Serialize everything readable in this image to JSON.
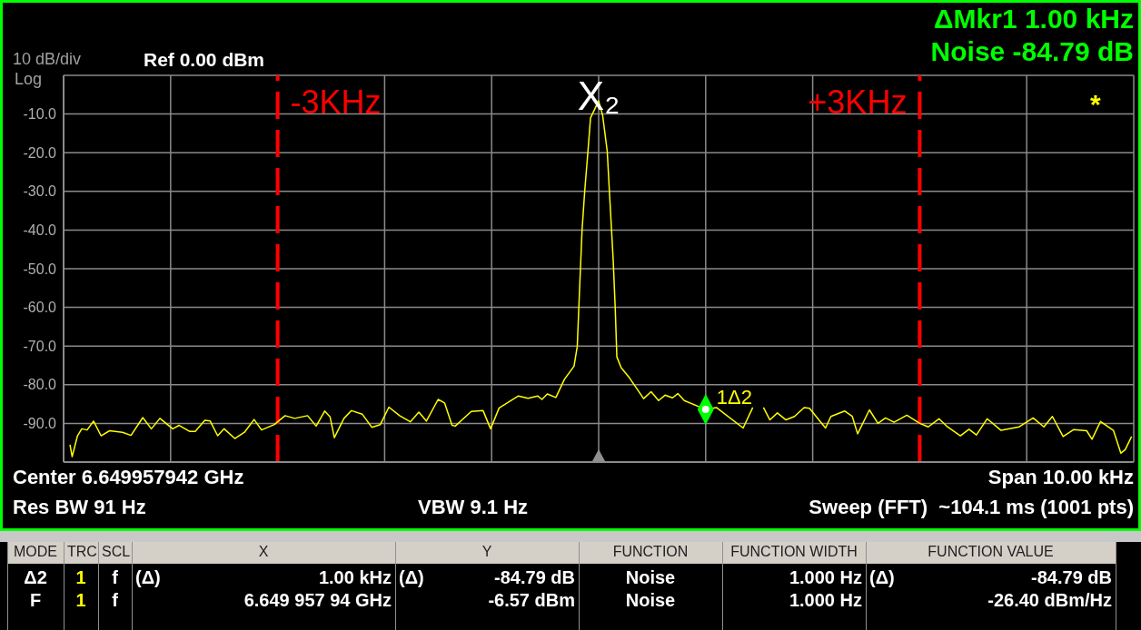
{
  "chart_data": {
    "type": "line",
    "ylim": [
      -100,
      0
    ],
    "yticks": [
      {
        "value": -10,
        "label": "-10.0"
      },
      {
        "value": -20,
        "label": "-20.0"
      },
      {
        "value": -30,
        "label": "-30.0"
      },
      {
        "value": -40,
        "label": "-40.0"
      },
      {
        "value": -50,
        "label": "-50.0"
      },
      {
        "value": -60,
        "label": "-60.0"
      },
      {
        "value": -70,
        "label": "-70.0"
      },
      {
        "value": -80,
        "label": "-80.0"
      },
      {
        "value": -90,
        "label": "-90.0"
      }
    ],
    "xlim": [
      -5,
      5
    ],
    "xticks": [
      {
        "value": -5,
        "label": null
      },
      {
        "value": -4,
        "label": null
      },
      {
        "value": -2,
        "label": null
      },
      {
        "value": -1,
        "label": null
      },
      {
        "value": 0,
        "label": null
      },
      {
        "value": 1,
        "label": null
      },
      {
        "value": 2,
        "label": null
      },
      {
        "value": 4,
        "label": null
      },
      {
        "value": 5,
        "label": null
      }
    ],
    "tick_labels": "y",
    "grid": true,
    "line_style": "solid",
    "series": [
      {
        "type": "line",
        "color": "#ffff00",
        "marker": "none",
        "x": [
          -4.94,
          -4.92,
          -4.87,
          -4.83,
          -4.78,
          -4.72,
          -4.65,
          -4.57,
          -4.45,
          -4.37,
          -4.26,
          -4.18,
          -4.1,
          -3.98,
          -3.92,
          -3.82,
          -3.77,
          -3.68,
          -3.63,
          -3.56,
          -3.5,
          -3.4,
          -3.31,
          -3.22,
          -3.15,
          -3.03,
          -2.93,
          -2.84,
          -2.72,
          -2.64,
          -2.56,
          -2.51,
          -2.47,
          -2.38,
          -2.31,
          -2.21,
          -2.12,
          -2.04,
          -1.96,
          -1.86,
          -1.76,
          -1.68,
          -1.61,
          -1.5,
          -1.44,
          -1.37,
          -1.34,
          -1.19,
          -1.08,
          -1.01,
          -0.93,
          -0.75,
          -0.66,
          -0.57,
          -0.53,
          -0.48,
          -0.4,
          -0.32,
          -0.23,
          -0.2,
          -0.18,
          -0.155,
          -0.13,
          -0.1,
          -0.076,
          0,
          0.037,
          0.08,
          0.1,
          0.136,
          0.155,
          0.17,
          0.21,
          0.29,
          0.42,
          0.49,
          0.56,
          0.62,
          0.69,
          0.74,
          0.8,
          0.94,
          1,
          1.1,
          1.35,
          1.44,
          1.49,
          1.54,
          1.6,
          1.67,
          1.75,
          1.83,
          1.92,
          1.97,
          2.12,
          2.17,
          2.3,
          2.37,
          2.42,
          2.53,
          2.61,
          2.68,
          2.76,
          2.88,
          3,
          3.08,
          3.18,
          3.26,
          3.38,
          3.46,
          3.53,
          3.63,
          3.76,
          3.93,
          4.06,
          4.16,
          4.24,
          4.34,
          4.44,
          4.56,
          4.61,
          4.69,
          4.81,
          4.88,
          4.92,
          4.98
        ],
        "values": [
          -95.5,
          -98.6,
          -93.2,
          -91.4,
          -91.7,
          -89.4,
          -93.2,
          -91.9,
          -92.3,
          -93.1,
          -88.5,
          -91.4,
          -88.7,
          -91.4,
          -90.5,
          -92.1,
          -92.1,
          -89.2,
          -89.4,
          -93.2,
          -91.4,
          -93.9,
          -92.3,
          -89,
          -91.7,
          -90.3,
          -88,
          -88.7,
          -88,
          -90.7,
          -86.8,
          -88.3,
          -93.7,
          -88.7,
          -86.7,
          -87.6,
          -91,
          -90.3,
          -85.8,
          -88,
          -89.6,
          -87.1,
          -89.4,
          -83.8,
          -84.7,
          -90.5,
          -90.7,
          -86.9,
          -86.7,
          -91.4,
          -86,
          -82.9,
          -83.5,
          -82.9,
          -83.8,
          -82.4,
          -83.3,
          -78.6,
          -75.2,
          -70.1,
          -56.4,
          -40,
          -29.8,
          -19.6,
          -11,
          -6.6,
          -10.3,
          -19.6,
          -29.8,
          -47.8,
          -60.3,
          -72.8,
          -75.6,
          -78.3,
          -83.6,
          -81.8,
          -84.1,
          -82.7,
          -83.4,
          -82.3,
          -84.1,
          -85.7,
          -86.4,
          -85.9,
          -91.2,
          -85.9,
          null,
          -85.9,
          -89.1,
          -87.3,
          -89.1,
          -88.2,
          -85.9,
          -86.1,
          -91.2,
          -88.2,
          -86.8,
          -88.2,
          -92.7,
          -86.5,
          -90,
          -88.6,
          -89.7,
          -87.9,
          -90,
          -90.9,
          -88.8,
          -90.9,
          -93.2,
          -91.5,
          -93,
          -88.8,
          -91.8,
          -90.9,
          -88.6,
          -90.9,
          -88.2,
          -93.4,
          -91.6,
          -91.9,
          -94.1,
          -89.5,
          -91.8,
          -97.7,
          -96.8,
          -93.4
        ]
      },
      {
        "type": "scatter",
        "color": "#00ff00",
        "marker": "diamond",
        "x": [
          1
        ],
        "values": [
          -86.4
        ]
      }
    ],
    "ref_lines": [
      {
        "axis": "x",
        "value": -3,
        "label": "-3KHz",
        "color": "#ff0000",
        "line_style": "dashed"
      },
      {
        "axis": "x",
        "value": 3,
        "label": "+3KHz",
        "color": "#ff0000",
        "line_style": "dashed"
      }
    ],
    "annotations": [
      "10 dB/div",
      "Log",
      "Ref 0.00 dBm",
      "ΔMkr1 1.00 kHz",
      "Noise -84.79 dB",
      "Center 6.649957942 GHz",
      "Span 10.00 kHz",
      "Res BW 91 Hz",
      "VBW 9.1 Hz",
      "Sweep (FFT)  ~104.1 ms (1001 pts)",
      {
        "text": "X₂",
        "x": 0,
        "y": -6.57
      },
      {
        "text": "1Δ2",
        "x": 1,
        "y": -86.4
      },
      "*",
      "MODE",
      "TRC",
      "SCL",
      "X",
      "Y",
      "FUNCTION",
      "FUNCTION WIDTH",
      "FUNCTION VALUE",
      "Δ2",
      "1",
      "f",
      "(Δ)",
      "1.00 kHz",
      "(Δ)",
      "-84.79 dB",
      "Noise",
      "1.000 Hz",
      "(Δ)",
      "-84.79 dB",
      "F",
      "1",
      "f",
      "6.649 957 94 GHz",
      "-6.57 dBm",
      "Noise",
      "1.000 Hz",
      "-26.40 dBm/Hz"
    ]
  }
}
